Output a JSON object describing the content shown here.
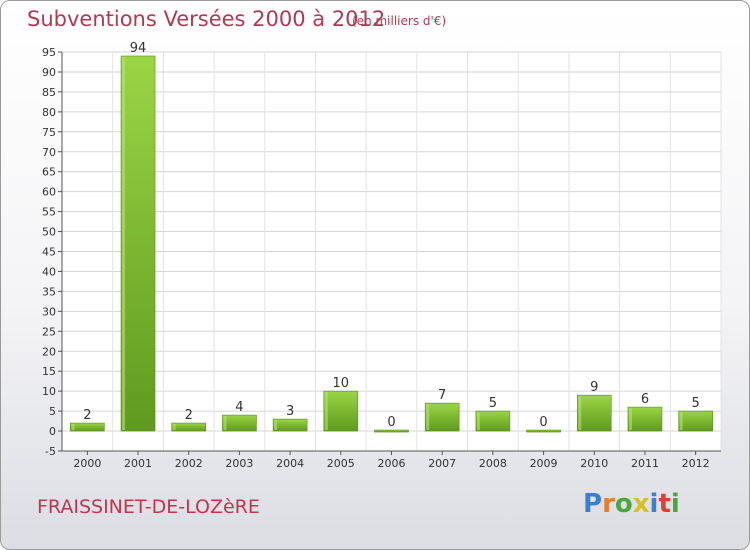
{
  "chart_data": {
    "type": "bar",
    "title": "Subventions Versées 2000 à 2012",
    "subtitle": "(en milliers d'€)",
    "categories": [
      "2000",
      "2001",
      "2002",
      "2003",
      "2004",
      "2005",
      "2006",
      "2007",
      "2008",
      "2009",
      "2010",
      "2011",
      "2012"
    ],
    "values": [
      2,
      94,
      2,
      4,
      3,
      10,
      0,
      7,
      5,
      0,
      9,
      6,
      5
    ],
    "value_labels": [
      "2",
      "94",
      "2",
      "4",
      "3",
      "10",
      "0",
      "7",
      "5",
      "0",
      "9",
      "6",
      "5"
    ],
    "ylim": [
      -5,
      95
    ],
    "yticks": [
      -5,
      0,
      5,
      10,
      15,
      20,
      25,
      30,
      35,
      40,
      45,
      50,
      55,
      60,
      65,
      70,
      75,
      80,
      85,
      90,
      95
    ],
    "grid": true,
    "bar_color": "#7dbf2e",
    "xlabel": "",
    "ylabel": ""
  },
  "footer": {
    "commune": "FRAISSINET-DE-LOZèRE",
    "logo_letters": [
      {
        "char": "P",
        "color": "#3a7fd0"
      },
      {
        "char": "r",
        "color": "#e0802a"
      },
      {
        "char": "o",
        "color": "#4aa83a"
      },
      {
        "char": "x",
        "color": "#d8c020"
      },
      {
        "char": "i",
        "color": "#3a7fd0"
      },
      {
        "char": "t",
        "color": "#e04030"
      },
      {
        "char": "i",
        "color": "#4aa83a"
      }
    ]
  }
}
